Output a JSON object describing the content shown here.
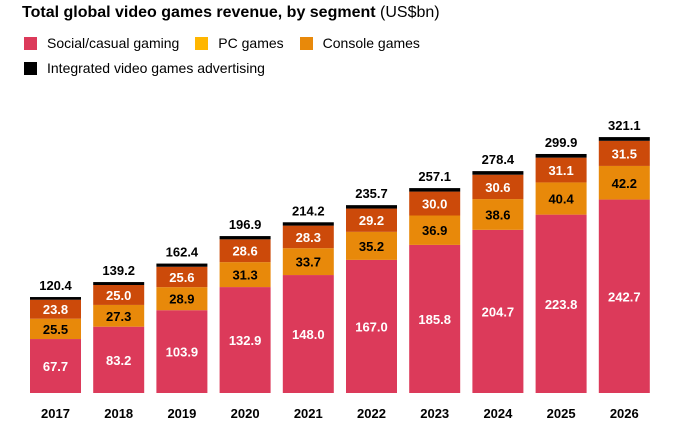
{
  "chart_data": {
    "type": "bar",
    "stacked": true,
    "title": "Total global video games revenue, by segment",
    "title_unit": "(US$bn)",
    "xlabel": "",
    "ylabel": "",
    "grid": false,
    "legend_position": "top-left",
    "categories": [
      "2017",
      "2018",
      "2019",
      "2020",
      "2021",
      "2022",
      "2023",
      "2024",
      "2025",
      "2026"
    ],
    "totals": [
      120.4,
      139.2,
      162.4,
      196.9,
      214.2,
      235.7,
      257.1,
      278.4,
      299.9,
      321.1
    ],
    "series": [
      {
        "name": "Social/casual gaming",
        "legend_color": "#DC3A5A",
        "bar_color": "#DC3A5A",
        "label_color": "#FFFFFF",
        "values": [
          67.7,
          83.2,
          103.9,
          132.9,
          148.0,
          167.0,
          185.8,
          204.7,
          223.8,
          242.7
        ]
      },
      {
        "name": "PC games",
        "legend_color": "#FFB600",
        "bar_color": "#E8890A",
        "label_color": "#000000",
        "values": [
          25.5,
          27.3,
          28.9,
          31.3,
          33.7,
          35.2,
          36.9,
          38.6,
          40.4,
          42.2
        ]
      },
      {
        "name": "Console games",
        "legend_color": "#E8890A",
        "bar_color": "#CC4A0A",
        "label_color": "#FFFFFF",
        "values": [
          23.8,
          25.0,
          25.6,
          28.6,
          28.3,
          29.2,
          30.0,
          30.6,
          31.1,
          31.5
        ]
      },
      {
        "name": "Integrated video games advertising",
        "legend_color": "#000000",
        "bar_color": "#000000",
        "label_color": null,
        "values": [
          3.4,
          3.7,
          4.0,
          4.1,
          4.2,
          4.3,
          4.4,
          4.5,
          4.6,
          4.7
        ]
      }
    ],
    "ylim": [
      0,
      330
    ]
  }
}
